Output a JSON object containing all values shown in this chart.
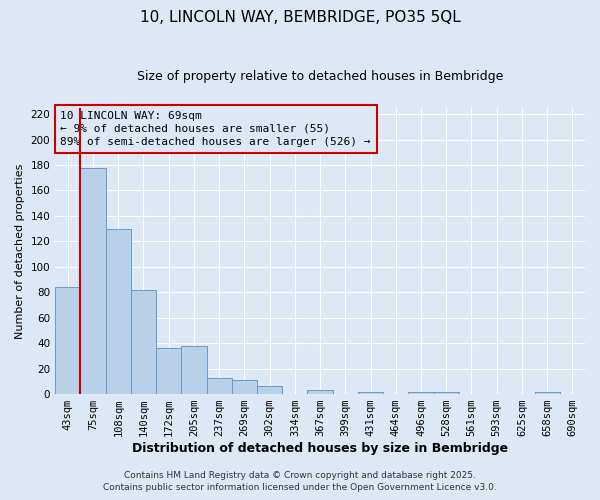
{
  "title": "10, LINCOLN WAY, BEMBRIDGE, PO35 5QL",
  "subtitle": "Size of property relative to detached houses in Bembridge",
  "xlabel": "Distribution of detached houses by size in Bembridge",
  "ylabel": "Number of detached properties",
  "bar_color": "#b8d0e8",
  "bar_edge_color": "#6699cc",
  "bg_color": "#dce8f5",
  "grid_color": "#ffffff",
  "annotation_box_color": "#cc0000",
  "vline_color": "#cc0000",
  "categories": [
    "43sqm",
    "75sqm",
    "108sqm",
    "140sqm",
    "172sqm",
    "205sqm",
    "237sqm",
    "269sqm",
    "302sqm",
    "334sqm",
    "367sqm",
    "399sqm",
    "431sqm",
    "464sqm",
    "496sqm",
    "528sqm",
    "561sqm",
    "593sqm",
    "625sqm",
    "658sqm",
    "690sqm"
  ],
  "values": [
    84,
    178,
    130,
    82,
    36,
    38,
    13,
    11,
    6,
    0,
    3,
    0,
    2,
    0,
    2,
    2,
    0,
    0,
    0,
    2,
    0
  ],
  "ylim": [
    0,
    225
  ],
  "yticks": [
    0,
    20,
    40,
    60,
    80,
    100,
    120,
    140,
    160,
    180,
    200,
    220
  ],
  "vline_position": 0.5,
  "annotation_text_line1": "10 LINCOLN WAY: 69sqm",
  "annotation_text_line2": "← 9% of detached houses are smaller (55)",
  "annotation_text_line3": "89% of semi-detached houses are larger (526) →",
  "footer_line1": "Contains HM Land Registry data © Crown copyright and database right 2025.",
  "footer_line2": "Contains public sector information licensed under the Open Government Licence v3.0.",
  "title_fontsize": 11,
  "subtitle_fontsize": 9,
  "xlabel_fontsize": 9,
  "ylabel_fontsize": 8,
  "tick_fontsize": 7.5,
  "footer_fontsize": 6.5,
  "annotation_fontsize": 8
}
